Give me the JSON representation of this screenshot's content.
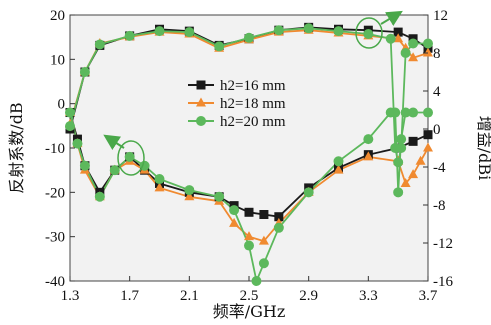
{
  "chart_data": {
    "type": "line",
    "xlabel": "频率/GHz",
    "ylabel_left": "反射系数/dB",
    "ylabel_right": "增益/dBi",
    "xlim": [
      1.3,
      3.7
    ],
    "ylim_left": [
      -40,
      20
    ],
    "ylim_right": [
      -16,
      12
    ],
    "xticks": [
      "1.3",
      "1.7",
      "2.1",
      "2.5",
      "2.9",
      "3.3",
      "3.7"
    ],
    "yticks_left": [
      "20",
      "10",
      "0",
      "-10",
      "-20",
      "-30",
      "-40"
    ],
    "yticks_right": [
      "12",
      "8",
      "4",
      "0",
      "-4",
      "-8",
      "-12",
      "-16"
    ],
    "legend_position": "center",
    "grid": false,
    "series": [
      {
        "name": "h2=16 mm",
        "color": "#1a1a1a",
        "marker": "square",
        "reflection": {
          "x": [
            1.3,
            1.35,
            1.4,
            1.5,
            1.6,
            1.7,
            1.8,
            1.9,
            2.1,
            2.3,
            2.4,
            2.5,
            2.6,
            2.7,
            2.9,
            3.1,
            3.3,
            3.5,
            3.6,
            3.7
          ],
          "y": [
            -2,
            -8,
            -14,
            -20,
            -15,
            -12,
            -15,
            -18,
            -20,
            -21,
            -23,
            -24.5,
            -25,
            -25.5,
            -19,
            -14.5,
            -11.5,
            -10,
            -8.5,
            -7
          ]
        },
        "gain": {
          "x": [
            1.3,
            1.4,
            1.5,
            1.7,
            1.9,
            2.1,
            2.3,
            2.5,
            2.7,
            2.9,
            3.1,
            3.3,
            3.5,
            3.6,
            3.7
          ],
          "y": [
            0,
            6,
            8.8,
            9.8,
            10.5,
            10.3,
            8.8,
            9.5,
            10.4,
            10.7,
            10.5,
            10.4,
            10.2,
            9.5,
            8.5
          ]
        }
      },
      {
        "name": "h2=18 mm",
        "color": "#f08a30",
        "marker": "triangle",
        "reflection": {
          "x": [
            1.3,
            1.35,
            1.4,
            1.5,
            1.6,
            1.7,
            1.8,
            1.9,
            2.1,
            2.3,
            2.4,
            2.5,
            2.6,
            2.7,
            2.9,
            3.1,
            3.3,
            3.5,
            3.55,
            3.6,
            3.65,
            3.7
          ],
          "y": [
            -2,
            -9,
            -15,
            -21,
            -15,
            -13,
            -15,
            -19,
            -21,
            -22,
            -27,
            -30,
            -31,
            -27,
            -20,
            -15,
            -12,
            -13,
            -18,
            -16,
            -13,
            -10
          ]
        },
        "gain": {
          "x": [
            1.3,
            1.4,
            1.5,
            1.7,
            1.9,
            2.1,
            2.3,
            2.5,
            2.7,
            2.9,
            3.1,
            3.3,
            3.5,
            3.55,
            3.6,
            3.7
          ],
          "y": [
            0.5,
            6,
            9,
            9.7,
            10.2,
            10,
            8.5,
            9.4,
            10.2,
            10.4,
            10.1,
            9.8,
            9.5,
            8.5,
            7.5,
            8
          ]
        }
      },
      {
        "name": "h2=20 mm",
        "color": "#5cb85c",
        "marker": "circle",
        "reflection": {
          "x": [
            1.3,
            1.35,
            1.4,
            1.5,
            1.6,
            1.7,
            1.8,
            1.9,
            2.1,
            2.3,
            2.4,
            2.5,
            2.55,
            2.6,
            2.7,
            2.9,
            3.1,
            3.3,
            3.45,
            3.48,
            3.5,
            3.52,
            3.55,
            3.6,
            3.7
          ],
          "y": [
            -2,
            -9,
            -14,
            -21,
            -15,
            -12,
            -14,
            -17,
            -19.5,
            -21,
            -24,
            -32,
            -40,
            -36,
            -28,
            -20,
            -13,
            -8,
            -2,
            -2,
            -20,
            -8,
            -2,
            -2,
            -2
          ]
        },
        "gain": {
          "x": [
            1.3,
            1.4,
            1.5,
            1.7,
            1.9,
            2.1,
            2.3,
            2.5,
            2.7,
            2.9,
            3.1,
            3.3,
            3.45,
            3.48,
            3.5,
            3.52,
            3.55,
            3.6,
            3.7
          ],
          "y": [
            0.3,
            6,
            8.9,
            9.8,
            10.3,
            10.2,
            8.7,
            9.6,
            10.4,
            10.6,
            10.3,
            10,
            9.5,
            -2,
            -3.5,
            -2,
            8,
            9,
            9
          ]
        }
      }
    ]
  }
}
